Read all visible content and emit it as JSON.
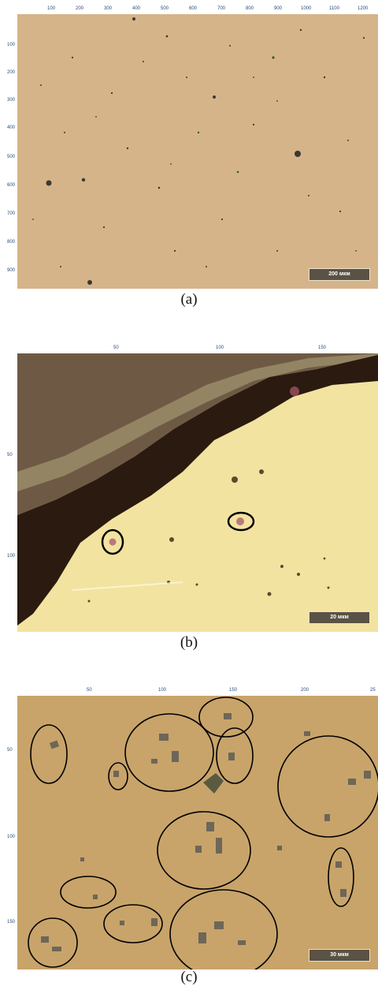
{
  "panels": [
    {
      "unit": "µm",
      "x_ticks": [
        "100",
        "200",
        "300",
        "400",
        "500",
        "600",
        "700",
        "800",
        "900",
        "1000",
        "1100",
        "1200"
      ],
      "y_ticks": [
        "100",
        "200",
        "300",
        "400",
        "500",
        "600",
        "700",
        "800",
        "900"
      ],
      "scale_label": "200 мкм",
      "caption": "(a)"
    },
    {
      "unit": "µm",
      "x_ticks": [
        "50",
        "100",
        "150"
      ],
      "y_ticks": [
        "50",
        "100"
      ],
      "scale_label": "20 мкм",
      "caption": "(b)"
    },
    {
      "unit": "µm",
      "x_ticks": [
        "50",
        "100",
        "150",
        "200",
        "25"
      ],
      "y_ticks": [
        "50",
        "100",
        "150"
      ],
      "scale_label": "30 мкм",
      "caption": "(c)"
    }
  ],
  "colors": {
    "surface_a": "#d6b48a",
    "surface_b": "#f2e3a0",
    "surface_c": "#c8a46a",
    "corrosion_dark": "#2a1a10",
    "oxide_layer": "#6e5a44",
    "ruler_text": "#2c4a7a"
  }
}
